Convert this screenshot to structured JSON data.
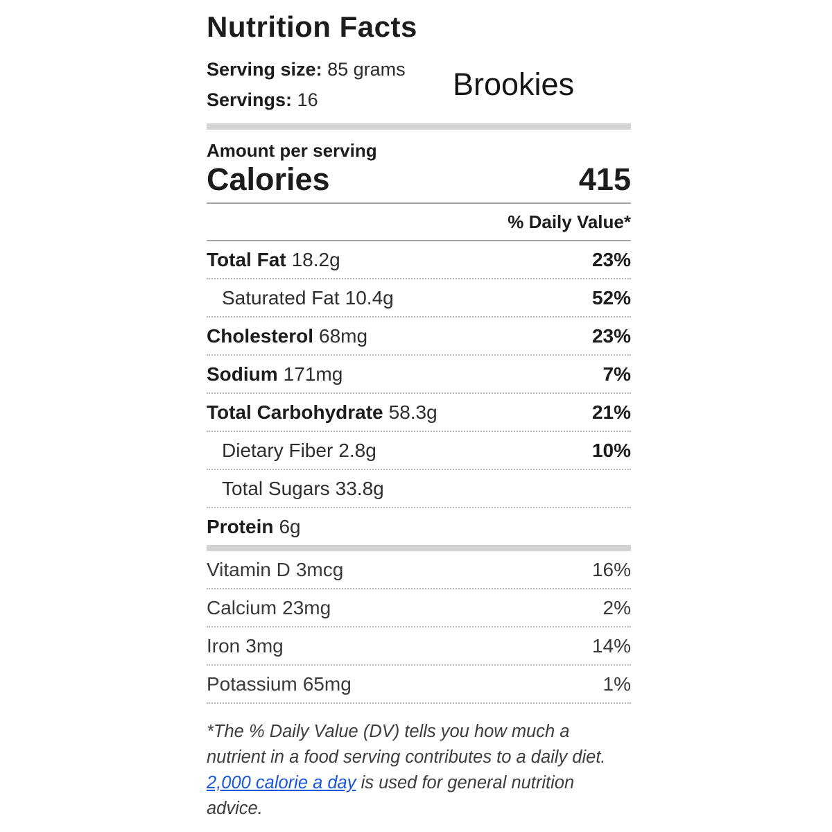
{
  "theme": {
    "link_color": "#1a56db",
    "thick_divider_color": "#d4d4d4",
    "thin_divider_color": "#a6a6a6",
    "dotted_divider_color": "#b9b9b9"
  },
  "header": {
    "title": "Nutrition Facts",
    "serving_size_label": "Serving size:",
    "serving_size_value": "85 grams",
    "servings_label": "Servings:",
    "servings_value": "16",
    "product_name": "Brookies"
  },
  "calories_section": {
    "amount_per_serving_label": "Amount per serving",
    "calories_label": "Calories",
    "calories_value": "415",
    "daily_value_header": "% Daily Value*"
  },
  "nutrients": [
    {
      "label": "Total Fat",
      "amount": "18.2g",
      "daily_value": "23%"
    },
    {
      "label": "Saturated Fat",
      "amount": "10.4g",
      "daily_value": "52%"
    },
    {
      "label": "Cholesterol",
      "amount": "68mg",
      "daily_value": "23%"
    },
    {
      "label": "Sodium",
      "amount": "171mg",
      "daily_value": "7%"
    },
    {
      "label": "Total Carbohydrate",
      "amount": "58.3g",
      "daily_value": "21%"
    },
    {
      "label": "Dietary Fiber",
      "amount": "2.8g",
      "daily_value": "10%"
    },
    {
      "label": "Total Sugars",
      "amount": "33.8g",
      "daily_value": ""
    },
    {
      "label": "Protein",
      "amount": "6g",
      "daily_value": ""
    }
  ],
  "micronutrients": [
    {
      "label": "Vitamin D",
      "amount": "3mcg",
      "daily_value": "16%"
    },
    {
      "label": "Calcium",
      "amount": "23mg",
      "daily_value": "2%"
    },
    {
      "label": "Iron",
      "amount": "3mg",
      "daily_value": "14%"
    },
    {
      "label": "Potassium",
      "amount": "65mg",
      "daily_value": "1%"
    }
  ],
  "footnote": {
    "text_before": "*The % Daily Value (DV) tells you how much a nutrient in a food serving contributes to a daily diet. ",
    "link_text": "2,000 calorie a day",
    "text_after": " is used for general nutrition advice."
  }
}
